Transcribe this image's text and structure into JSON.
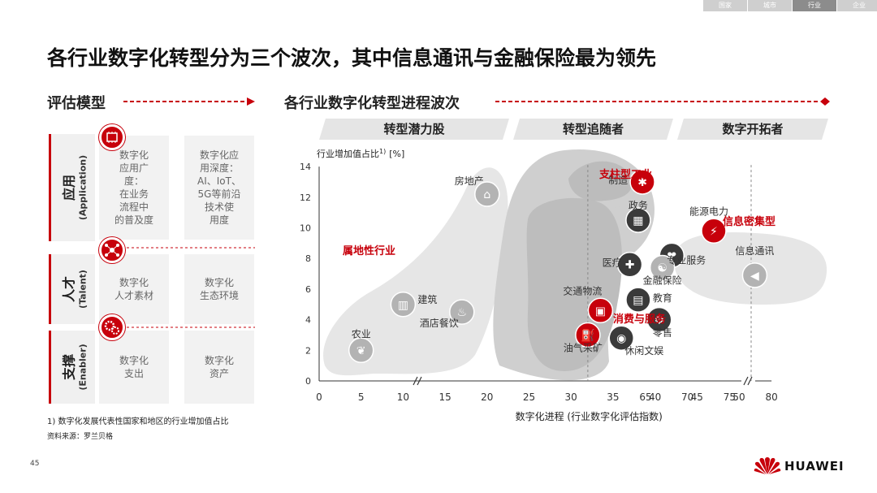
{
  "top_tabs": [
    "国家",
    "城市",
    "行业",
    "企业"
  ],
  "top_tab_active": 2,
  "page_title": "各行业数字化转型分为三个波次，其中信息通讯与金融保险最为领先",
  "left_section_title": "评估模型",
  "right_section_title": "各行业数字化转型进程波次",
  "model": {
    "rows": [
      {
        "label_zh": "应用",
        "label_en": "(Application)",
        "cells": [
          "数字化\n应用广\n度：\n在业务\n流程中\n的普及度",
          "数字化应\n用深度：\nAI、IoT、\n5G等前沿\n技术使\n用度"
        ]
      },
      {
        "label_zh": "人才",
        "label_en": "(Talent)",
        "cells": [
          "数字化\n人才素材",
          "数字化\n生态环境"
        ]
      },
      {
        "label_zh": "支撑",
        "label_en": "(Enabler)",
        "cells": [
          "数字化\n支出",
          "数字化\n资产"
        ]
      }
    ],
    "badge_icons": [
      "chip-icon",
      "people-network-icon",
      "gears-icon"
    ]
  },
  "wave_banners": [
    "转型潜力股",
    "转型追随者",
    "数字开拓者"
  ],
  "chart_data": {
    "type": "scatter",
    "ylabel": "行业增加值占比",
    "ylabel_note": "1)",
    "ylabel_unit": "[%]",
    "xlabel": "数字化进程 (行业数字化评估指数)",
    "x_ticks": [
      0,
      5,
      10,
      15,
      20,
      25,
      30,
      35,
      40,
      45,
      50,
      65,
      70,
      75,
      80
    ],
    "y_ticks": [
      0,
      2,
      4,
      6,
      8,
      10,
      12,
      14
    ],
    "ylim": [
      0,
      14
    ],
    "x_break": "50-65",
    "points": [
      {
        "name": "农业",
        "x": 5,
        "y": 2,
        "icon": "leaf-icon",
        "style": "grey"
      },
      {
        "name": "建筑",
        "x": 10,
        "y": 5,
        "icon": "building-icon",
        "style": "grey"
      },
      {
        "name": "酒店餐饮",
        "x": 17,
        "y": 4.5,
        "icon": "coffee-icon",
        "style": "grey"
      },
      {
        "name": "房地产",
        "x": 20,
        "y": 12.2,
        "icon": "house-icon",
        "style": "grey"
      },
      {
        "name": "制造",
        "x": 38.5,
        "y": 13,
        "icon": "factory-icon",
        "style": "red"
      },
      {
        "name": "政务",
        "x": 38,
        "y": 10.5,
        "icon": "government-icon",
        "style": "dark"
      },
      {
        "name": "能源电力",
        "x": 47,
        "y": 9.8,
        "icon": "battery-icon",
        "style": "red"
      },
      {
        "name": "医疗",
        "x": 37,
        "y": 7.6,
        "icon": "medical-icon",
        "style": "dark"
      },
      {
        "name": "专业服务",
        "x": 42,
        "y": 8.2,
        "icon": "handshake-icon",
        "style": "dark"
      },
      {
        "name": "交通物流",
        "x": 33.5,
        "y": 4.6,
        "icon": "train-icon",
        "style": "red"
      },
      {
        "name": "教育",
        "x": 38,
        "y": 5.3,
        "icon": "book-icon",
        "style": "dark"
      },
      {
        "name": "零售",
        "x": 40.5,
        "y": 4,
        "icon": "gear-icon",
        "style": "dark"
      },
      {
        "name": "油气采矿",
        "x": 32,
        "y": 3,
        "icon": "fuel-icon",
        "style": "red"
      },
      {
        "name": "休闲文娱",
        "x": 36,
        "y": 2.8,
        "icon": "gamepad-icon",
        "style": "dark"
      },
      {
        "name": "金融保险",
        "x": 67,
        "y": 7.4,
        "icon": "finance-icon",
        "style": "grey"
      },
      {
        "name": "信息通讯",
        "x": 78,
        "y": 6.9,
        "icon": "megaphone-icon",
        "style": "grey"
      }
    ],
    "group_labels": [
      "属地性行业",
      "支柱型工业",
      "消费与服务",
      "信息密集型"
    ]
  },
  "footnote": "1) 数字化发展代表性国家和地区的行业增加值占比",
  "source": "资料来源：罗兰贝格",
  "page_number": "45",
  "brand": "HUAWEI",
  "colors": {
    "accent": "#c7000b",
    "blob": "#e6e6e6",
    "blob_dark": "#c9c9c9",
    "icon_dark": "#3a3a3a",
    "icon_grey": "#b3b3b3"
  }
}
